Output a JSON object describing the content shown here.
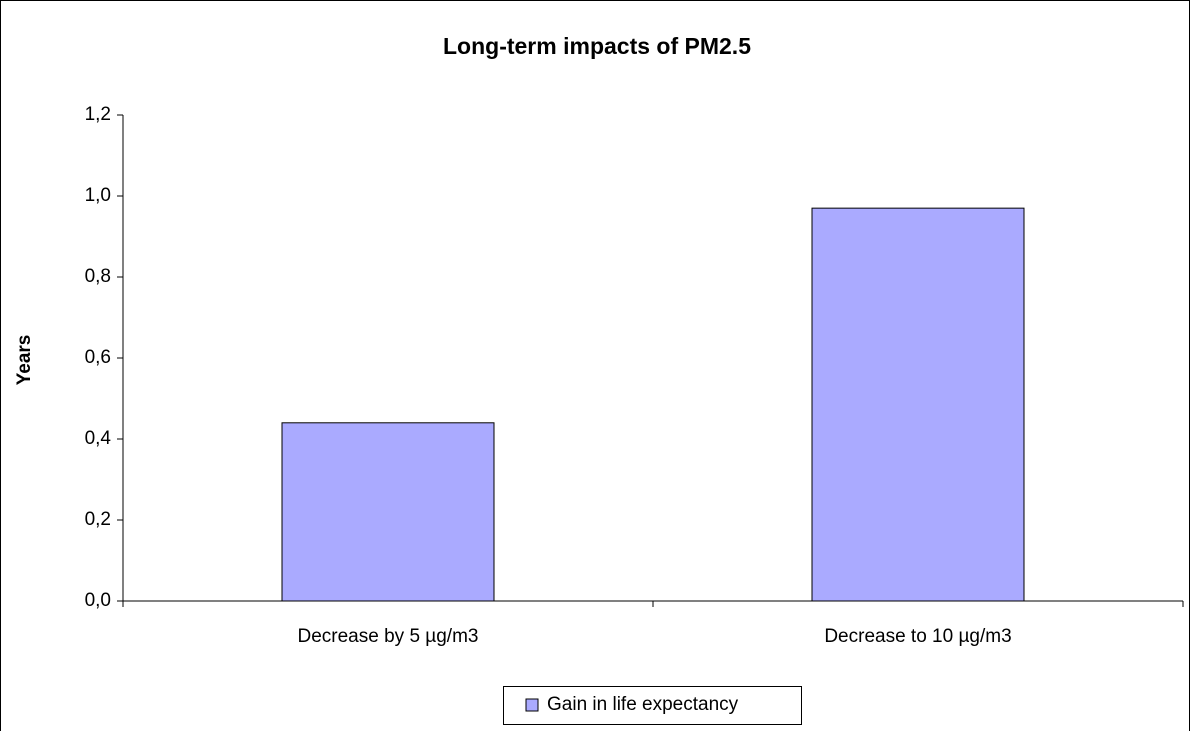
{
  "chart_data": {
    "type": "bar",
    "title": "Long-term impacts of PM2.5",
    "y_label": "Years",
    "categories": [
      "Decrease by 5 µg/m3",
      "Decrease to 10 µg/m3"
    ],
    "series": [
      {
        "name": "Gain in life expectancy",
        "color": "#aaaaff",
        "values": [
          0.44,
          0.97
        ]
      }
    ],
    "ylim": [
      0,
      1.2
    ],
    "yticks": [
      {
        "value": 0,
        "label": "0,0"
      },
      {
        "value": 0.2,
        "label": "0,2"
      },
      {
        "value": 0.4,
        "label": "0,4"
      },
      {
        "value": 0.6,
        "label": "0,6"
      },
      {
        "value": 0.8,
        "label": "0,8"
      },
      {
        "value": 1,
        "label": "1,0"
      },
      {
        "value": 1.2,
        "label": "1,2"
      }
    ],
    "grid": false,
    "legend": "bottom"
  }
}
